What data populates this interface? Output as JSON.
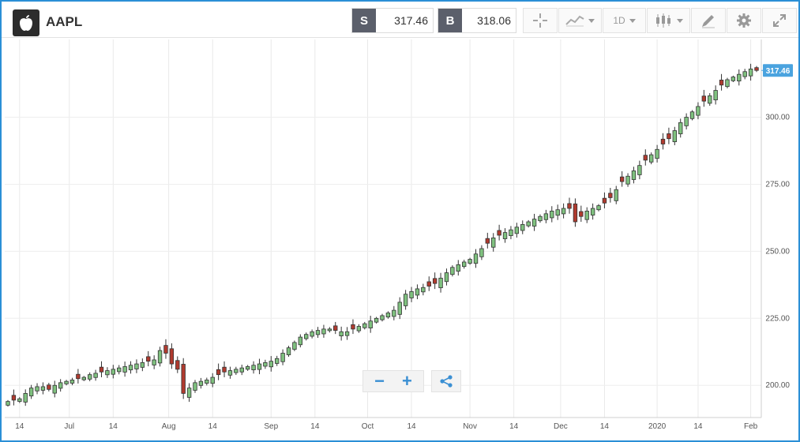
{
  "header": {
    "symbol": "AAPL",
    "logo_icon": "apple-logo-icon",
    "sell": {
      "tag": "S",
      "value": "317.46"
    },
    "buy": {
      "tag": "B",
      "value": "318.06"
    },
    "timeframe": "1D",
    "icons": {
      "crosshair": "crosshair-icon",
      "chart_type": "line-chart-icon",
      "candles": "candlestick-icon",
      "draw": "draw-pencil-icon",
      "settings": "gear-icon",
      "expand": "expand-icon"
    }
  },
  "controls": {
    "zoom_out": "−",
    "zoom_in": "+",
    "share_icon": "share-icon"
  },
  "colors": {
    "up": "#7fc17f",
    "down": "#b03a2e",
    "price_badge": "#4aa3df",
    "frame": "#2a8fd6"
  },
  "chart_data": {
    "type": "candlestick",
    "y_ticks": [
      "200.00",
      "225.00",
      "250.00",
      "275.00",
      "300.00"
    ],
    "y_tick_values": [
      200,
      225,
      250,
      275,
      300
    ],
    "ylim": [
      188,
      329
    ],
    "x_ticks": [
      "14",
      "Jul",
      "14",
      "Aug",
      "14",
      "Sep",
      "14",
      "Oct",
      "14",
      "Nov",
      "14",
      "Dec",
      "14",
      "2020",
      "14",
      "Feb"
    ],
    "x_tick_index": [
      2,
      10.5,
      18,
      27.5,
      35,
      45,
      52.5,
      61.5,
      69,
      79,
      86.5,
      94.5,
      102,
      111,
      118,
      127
    ],
    "last_price": "317.46",
    "last_price_value": 317.46,
    "closes": [
      194,
      194.5,
      195,
      197,
      199,
      199.5,
      199.5,
      198.5,
      200,
      201,
      201.5,
      202,
      202.5,
      203,
      204,
      204.5,
      205,
      205.5,
      206,
      206.5,
      207,
      207.5,
      208,
      208.5,
      209,
      209.5,
      213,
      212,
      208,
      206,
      197,
      199,
      201,
      201.5,
      202,
      203,
      204,
      205,
      205.5,
      206,
      206.5,
      207,
      207.5,
      208,
      208.5,
      209,
      210,
      212,
      214,
      216,
      218,
      219,
      220,
      220.5,
      221,
      221,
      220.5,
      220,
      220,
      221,
      222,
      223,
      224,
      225,
      226,
      227,
      228,
      231,
      234,
      235,
      236,
      236.5,
      237,
      238,
      240,
      242,
      244,
      245,
      246,
      247,
      249,
      251,
      253,
      255,
      256,
      257,
      258,
      259,
      260,
      261,
      262,
      263,
      264,
      265,
      265.5,
      266,
      266,
      261,
      263,
      265,
      266,
      267,
      268,
      270,
      273,
      276,
      278,
      280,
      282,
      284,
      286,
      288,
      290,
      292,
      295,
      298,
      300,
      302,
      304,
      306,
      308,
      310,
      312,
      314,
      315,
      316,
      317,
      318,
      317.46
    ]
  }
}
